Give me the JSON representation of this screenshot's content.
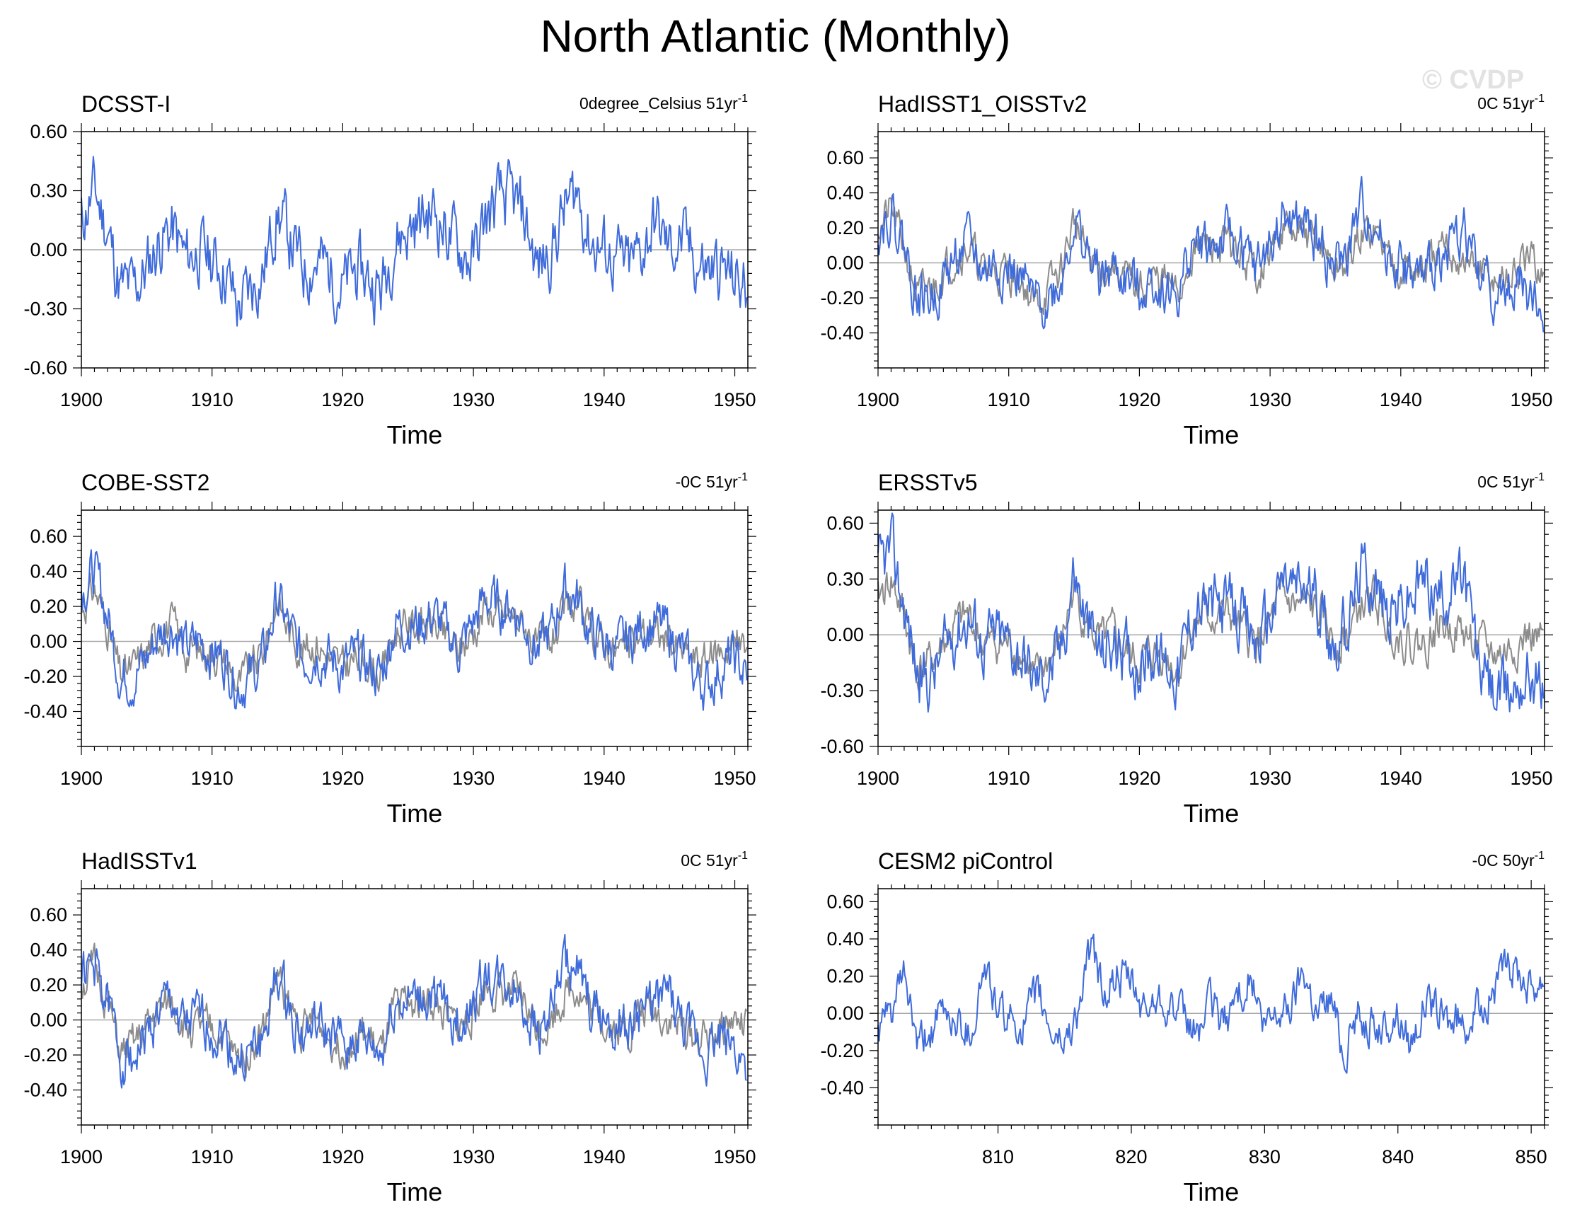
{
  "title": "North Atlantic (Monthly)",
  "watermark": "© CVDP",
  "colors": {
    "model": "#3f6bdb",
    "obs": "#8c8c8c",
    "zero": "#a8a8a8",
    "axis": "#000000"
  },
  "chart_data": [
    {
      "type": "line",
      "title": "DCSST-I",
      "annotation": "0degree_Celsius 51yr",
      "annotation_sup": "-1",
      "xlabel": "Time",
      "xlim": [
        1900,
        1951
      ],
      "xticks": [
        1900,
        1910,
        1920,
        1930,
        1940,
        1950
      ],
      "ylim": [
        -0.6,
        0.6
      ],
      "yticks": [
        0.6,
        0.3,
        0.0,
        -0.3,
        -0.6
      ],
      "ytick_labels": [
        "0.60",
        "0.30",
        "0.00",
        "-0.30",
        "-0.60"
      ],
      "series": [
        {
          "name": "DCSST-I",
          "color": "model",
          "seed": 11,
          "amp": 0.14,
          "shape": [
            0.15,
            0.3,
            0.1,
            -0.2,
            -0.2,
            -0.1,
            0.05,
            0.1,
            -0.05,
            0.0,
            -0.05,
            -0.1,
            -0.3,
            -0.2,
            -0.1,
            0.2,
            0.05,
            -0.1,
            -0.05,
            -0.1,
            -0.2,
            -0.1,
            -0.15,
            -0.2,
            0.05,
            0.1,
            0.15,
            0.2,
            0.1,
            0.0,
            -0.05,
            0.15,
            0.25,
            0.25,
            0.15,
            -0.1,
            0.0,
            0.2,
            0.3,
            0.05,
            0.0,
            -0.05,
            -0.1,
            0.0,
            0.15,
            0.0,
            0.05,
            -0.05,
            -0.1,
            -0.1,
            -0.15,
            -0.2
          ]
        }
      ]
    },
    {
      "type": "line",
      "title": "HadISST1_OISSTv2",
      "annotation": "0C 51yr",
      "annotation_sup": "-1",
      "xlabel": "Time",
      "xlim": [
        1900,
        1951
      ],
      "xticks": [
        1900,
        1910,
        1920,
        1930,
        1940,
        1950
      ],
      "ylim": [
        -0.6,
        0.75
      ],
      "yticks": [
        0.6,
        0.4,
        0.2,
        0.0,
        -0.2,
        -0.4
      ],
      "ytick_labels": [
        "0.60",
        "0.40",
        "0.20",
        "0.00",
        "-0.20",
        "-0.40"
      ],
      "series": [
        {
          "name": "HadISST1_OISSTv2 (obs)",
          "color": "obs",
          "seed": 21,
          "amp": 0.09,
          "shape": [
            0.2,
            0.3,
            0.1,
            -0.2,
            -0.15,
            -0.05,
            0.05,
            0.1,
            -0.05,
            -0.05,
            -0.05,
            -0.1,
            -0.25,
            -0.15,
            -0.05,
            0.25,
            0.05,
            -0.05,
            0.0,
            -0.1,
            -0.15,
            -0.1,
            -0.1,
            -0.2,
            0.05,
            0.1,
            0.1,
            0.1,
            0.0,
            -0.05,
            0.05,
            0.2,
            0.15,
            0.15,
            0.1,
            -0.05,
            0.0,
            0.15,
            0.2,
            0.05,
            0.0,
            -0.05,
            -0.05,
            0.05,
            0.05,
            0.0,
            -0.05,
            -0.1,
            -0.1,
            -0.05,
            0.0,
            -0.05
          ]
        },
        {
          "name": "HadISST1_OISSTv2",
          "color": "model",
          "seed": 22,
          "amp": 0.12,
          "shape": [
            0.2,
            0.3,
            0.1,
            -0.2,
            -0.2,
            -0.1,
            0.05,
            0.1,
            -0.05,
            0.0,
            -0.05,
            -0.1,
            -0.25,
            -0.2,
            -0.1,
            0.25,
            0.05,
            -0.1,
            -0.05,
            -0.1,
            -0.15,
            -0.1,
            -0.15,
            -0.2,
            0.1,
            0.1,
            0.1,
            0.15,
            0.05,
            -0.05,
            0.1,
            0.25,
            0.2,
            0.2,
            0.1,
            -0.05,
            0.05,
            0.3,
            0.25,
            0.05,
            0.0,
            -0.1,
            -0.1,
            0.05,
            0.1,
            0.2,
            -0.05,
            -0.15,
            -0.2,
            -0.1,
            -0.2,
            -0.3
          ]
        }
      ]
    },
    {
      "type": "line",
      "title": "COBE-SST2",
      "annotation": "-0C 51yr",
      "annotation_sup": "-1",
      "xlabel": "Time",
      "xlim": [
        1900,
        1951
      ],
      "xticks": [
        1900,
        1910,
        1920,
        1930,
        1940,
        1950
      ],
      "ylim": [
        -0.6,
        0.75
      ],
      "yticks": [
        0.6,
        0.4,
        0.2,
        0.0,
        -0.2,
        -0.4
      ],
      "ytick_labels": [
        "0.60",
        "0.40",
        "0.20",
        "0.00",
        "-0.20",
        "-0.40"
      ],
      "series": [
        {
          "name": "COBE-SST2 (obs)",
          "color": "obs",
          "seed": 31,
          "amp": 0.09,
          "shape": [
            0.2,
            0.3,
            0.1,
            -0.2,
            -0.15,
            -0.05,
            0.05,
            0.1,
            -0.05,
            -0.05,
            -0.05,
            -0.1,
            -0.25,
            -0.15,
            -0.05,
            0.25,
            0.05,
            -0.05,
            0.0,
            -0.1,
            -0.15,
            -0.1,
            -0.1,
            -0.2,
            0.05,
            0.1,
            0.1,
            0.1,
            0.0,
            -0.05,
            0.05,
            0.2,
            0.15,
            0.15,
            0.1,
            -0.05,
            0.0,
            0.15,
            0.2,
            0.05,
            0.0,
            -0.05,
            -0.05,
            0.05,
            0.05,
            0.0,
            -0.05,
            -0.1,
            -0.1,
            -0.05,
            0.0,
            -0.05
          ]
        },
        {
          "name": "COBE-SST2",
          "color": "model",
          "seed": 32,
          "amp": 0.12,
          "shape": [
            0.3,
            0.4,
            0.15,
            -0.2,
            -0.2,
            -0.1,
            0.05,
            0.1,
            -0.05,
            0.0,
            -0.05,
            -0.1,
            -0.25,
            -0.2,
            -0.1,
            0.25,
            0.05,
            -0.1,
            -0.05,
            -0.1,
            -0.15,
            -0.1,
            -0.15,
            -0.2,
            0.1,
            0.1,
            0.1,
            0.15,
            0.05,
            -0.05,
            0.1,
            0.25,
            0.2,
            0.2,
            0.1,
            -0.05,
            0.05,
            0.3,
            0.25,
            0.05,
            0.0,
            -0.05,
            0.0,
            0.1,
            0.1,
            0.05,
            -0.05,
            -0.2,
            -0.25,
            -0.15,
            -0.1,
            -0.2
          ]
        }
      ]
    },
    {
      "type": "line",
      "title": "ERSSTv5",
      "annotation": "0C 51yr",
      "annotation_sup": "-1",
      "xlabel": "Time",
      "xlim": [
        1900,
        1951
      ],
      "xticks": [
        1900,
        1910,
        1920,
        1930,
        1940,
        1950
      ],
      "ylim": [
        -0.6,
        0.67
      ],
      "yticks": [
        0.6,
        0.3,
        0.0,
        -0.3,
        -0.6
      ],
      "ytick_labels": [
        "0.60",
        "0.30",
        "0.00",
        "-0.30",
        "-0.60"
      ],
      "series": [
        {
          "name": "ERSSTv5 (obs)",
          "color": "obs",
          "seed": 41,
          "amp": 0.09,
          "shape": [
            0.2,
            0.3,
            0.1,
            -0.2,
            -0.15,
            -0.05,
            0.05,
            0.1,
            -0.05,
            -0.05,
            -0.05,
            -0.1,
            -0.25,
            -0.15,
            -0.05,
            0.25,
            0.05,
            -0.05,
            0.0,
            -0.1,
            -0.15,
            -0.1,
            -0.1,
            -0.2,
            0.05,
            0.1,
            0.1,
            0.1,
            0.0,
            -0.05,
            0.05,
            0.2,
            0.15,
            0.15,
            0.1,
            -0.05,
            0.0,
            0.15,
            0.2,
            0.05,
            0.0,
            -0.05,
            -0.05,
            0.05,
            0.05,
            0.0,
            -0.05,
            -0.1,
            -0.1,
            -0.05,
            0.0,
            -0.05
          ]
        },
        {
          "name": "ERSSTv5",
          "color": "model",
          "seed": 42,
          "amp": 0.14,
          "shape": [
            0.35,
            0.45,
            0.15,
            -0.2,
            -0.25,
            -0.1,
            0.05,
            0.1,
            -0.05,
            0.0,
            -0.05,
            -0.1,
            -0.25,
            -0.2,
            -0.1,
            0.35,
            0.05,
            -0.1,
            -0.05,
            -0.1,
            -0.15,
            -0.1,
            -0.15,
            -0.2,
            0.1,
            0.15,
            0.15,
            0.15,
            0.05,
            -0.05,
            0.1,
            0.3,
            0.25,
            0.25,
            0.15,
            -0.05,
            0.05,
            0.35,
            0.3,
            0.1,
            0.15,
            0.2,
            0.3,
            0.2,
            0.25,
            0.3,
            -0.15,
            -0.3,
            -0.35,
            -0.25,
            -0.2,
            -0.3
          ]
        }
      ]
    },
    {
      "type": "line",
      "title": "HadISSTv1",
      "annotation": "0C 51yr",
      "annotation_sup": "-1",
      "xlabel": "Time",
      "xlim": [
        1900,
        1951
      ],
      "xticks": [
        1900,
        1910,
        1920,
        1930,
        1940,
        1950
      ],
      "ylim": [
        -0.6,
        0.75
      ],
      "yticks": [
        0.6,
        0.4,
        0.2,
        0.0,
        -0.2,
        -0.4
      ],
      "ytick_labels": [
        "0.60",
        "0.40",
        "0.20",
        "0.00",
        "-0.20",
        "-0.40"
      ],
      "series": [
        {
          "name": "HadISSTv1 (obs)",
          "color": "obs",
          "seed": 51,
          "amp": 0.09,
          "shape": [
            0.2,
            0.3,
            0.1,
            -0.2,
            -0.15,
            -0.05,
            0.05,
            0.1,
            -0.05,
            -0.05,
            -0.05,
            -0.1,
            -0.25,
            -0.15,
            -0.05,
            0.25,
            0.05,
            -0.05,
            0.0,
            -0.1,
            -0.15,
            -0.1,
            -0.1,
            -0.2,
            0.05,
            0.1,
            0.1,
            0.1,
            0.0,
            -0.05,
            0.05,
            0.2,
            0.15,
            0.15,
            0.1,
            -0.05,
            0.0,
            0.15,
            0.2,
            0.05,
            0.0,
            -0.05,
            -0.05,
            0.05,
            0.05,
            0.0,
            -0.05,
            -0.1,
            -0.1,
            -0.05,
            0.0,
            -0.05
          ]
        },
        {
          "name": "HadISSTv1",
          "color": "model",
          "seed": 52,
          "amp": 0.12,
          "shape": [
            0.25,
            0.3,
            0.1,
            -0.2,
            -0.2,
            -0.1,
            0.05,
            0.1,
            -0.05,
            0.0,
            -0.05,
            -0.1,
            -0.25,
            -0.2,
            -0.1,
            0.25,
            0.05,
            -0.1,
            -0.05,
            -0.1,
            -0.15,
            -0.1,
            -0.15,
            -0.2,
            0.1,
            0.1,
            0.1,
            0.15,
            0.05,
            -0.05,
            0.1,
            0.25,
            0.2,
            0.2,
            0.1,
            -0.05,
            0.05,
            0.3,
            0.25,
            0.05,
            0.0,
            -0.05,
            -0.05,
            0.05,
            0.1,
            0.15,
            -0.05,
            -0.15,
            -0.2,
            -0.1,
            -0.15,
            -0.25
          ]
        }
      ]
    },
    {
      "type": "line",
      "title": "CESM2 piControl",
      "annotation": "-0C 50yr",
      "annotation_sup": "-1",
      "xlabel": "Time",
      "xlim": [
        801,
        851
      ],
      "xticks": [
        810,
        820,
        830,
        840,
        850
      ],
      "ylim": [
        -0.6,
        0.67
      ],
      "yticks": [
        0.6,
        0.4,
        0.2,
        0.0,
        -0.2,
        -0.4
      ],
      "ytick_labels": [
        "0.60",
        "0.40",
        "0.20",
        "0.00",
        "-0.20",
        "-0.40"
      ],
      "series": [
        {
          "name": "CESM2 piControl",
          "color": "model",
          "seed": 61,
          "amp": 0.09,
          "shape": [
            -0.1,
            0.0,
            0.2,
            -0.2,
            -0.1,
            0.0,
            -0.05,
            -0.1,
            0.25,
            0.0,
            -0.05,
            -0.05,
            0.1,
            -0.1,
            -0.15,
            0.0,
            0.35,
            0.1,
            0.2,
            0.15,
            0.0,
            0.1,
            0.05,
            -0.05,
            -0.1,
            0.05,
            -0.05,
            0.1,
            0.2,
            -0.1,
            0.0,
            0.05,
            0.25,
            0.0,
            0.1,
            -0.2,
            0.0,
            -0.05,
            -0.1,
            0.0,
            -0.15,
            0.05,
            0.0,
            -0.05,
            -0.05,
            0.0,
            0.1,
            0.2,
            0.25,
            0.15,
            0.2
          ]
        }
      ]
    }
  ]
}
